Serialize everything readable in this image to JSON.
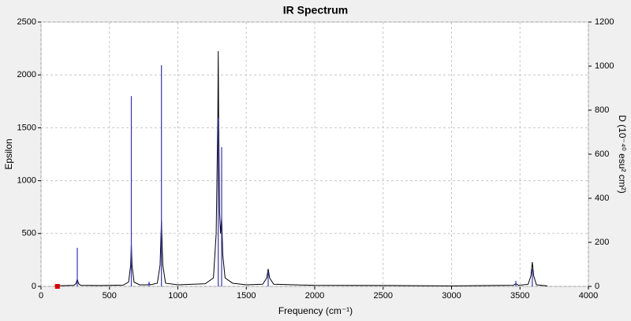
{
  "chart_data": {
    "type": "spectrum",
    "title": "IR Spectrum",
    "x_label": "Frequency (cm⁻¹)",
    "y_label": "Epsilon",
    "y2_label": "D (10⁻⁴⁰ esu² cm²)",
    "xlim": [
      0,
      4000
    ],
    "xticks": [
      0,
      500,
      1000,
      1500,
      2000,
      2500,
      3000,
      3500,
      4000
    ],
    "ylim": [
      0,
      2500
    ],
    "yticks": [
      0,
      500,
      1000,
      1500,
      2000,
      2500
    ],
    "y2lim": [
      0,
      1200
    ],
    "y2ticks": [
      0,
      200,
      400,
      600,
      800,
      1000,
      1200
    ],
    "grid": true,
    "series": [
      {
        "style": "line",
        "color": "#000000",
        "x": [
          100,
          240,
          255,
          265,
          275,
          290,
          430,
          600,
          640,
          655,
          660,
          665,
          680,
          720,
          780,
          790,
          800,
          850,
          870,
          880,
          890,
          910,
          1000,
          1200,
          1260,
          1280,
          1292,
          1295,
          1298,
          1305,
          1312,
          1320,
          1328,
          1345,
          1400,
          1500,
          1620,
          1650,
          1660,
          1670,
          1700,
          2000,
          2575,
          3000,
          3450,
          3470,
          3490,
          3560,
          3580,
          3590,
          3600,
          3620,
          3700
        ],
        "values": [
          5,
          10,
          25,
          67,
          25,
          10,
          8,
          12,
          40,
          200,
          400,
          200,
          40,
          15,
          15,
          25,
          15,
          30,
          200,
          620,
          200,
          30,
          15,
          25,
          80,
          500,
          1600,
          2225,
          1600,
          700,
          500,
          650,
          300,
          80,
          30,
          15,
          20,
          80,
          165,
          80,
          20,
          10,
          8,
          5,
          10,
          25,
          10,
          20,
          100,
          230,
          100,
          15,
          5
        ]
      },
      {
        "style": "stick",
        "color": "#3333cc",
        "axis": "y2",
        "x": [
          265,
          660,
          790,
          880,
          1295,
          1320,
          1660,
          3470,
          3590
        ],
        "values": [
          175,
          864,
          21,
          1004,
          764,
          632,
          68,
          25,
          79
        ]
      }
    ],
    "marker": {
      "x": 120,
      "y": 0,
      "color": "#e00000"
    }
  }
}
